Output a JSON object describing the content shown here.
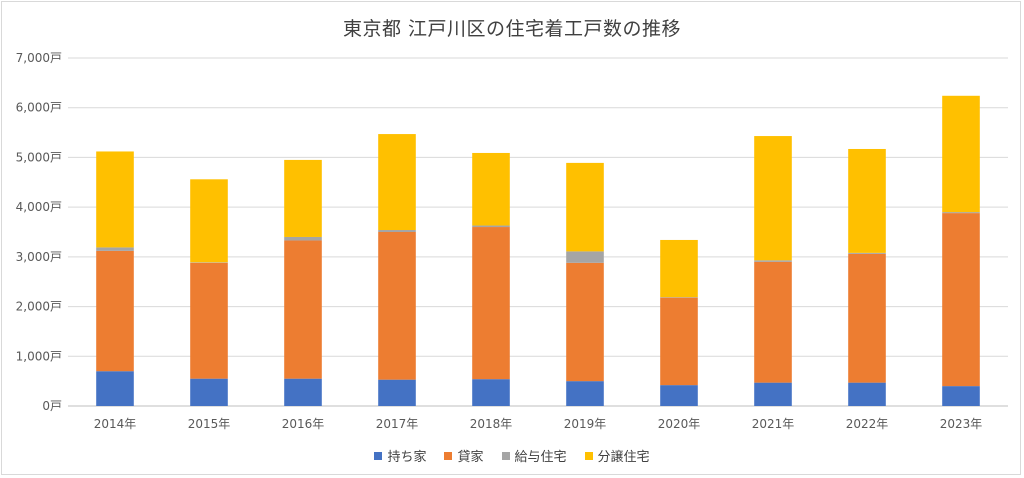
{
  "chart_data": {
    "type": "bar",
    "stacked": true,
    "title": "東京都 江戸川区の住宅着工戸数の推移",
    "categories": [
      "2014年",
      "2015年",
      "2016年",
      "2017年",
      "2018年",
      "2019年",
      "2020年",
      "2021年",
      "2022年",
      "2023年"
    ],
    "series": [
      {
        "name": "持ち家",
        "color": "#4472C4",
        "values": [
          700,
          550,
          550,
          530,
          540,
          500,
          420,
          470,
          470,
          400
        ]
      },
      {
        "name": "貸家",
        "color": "#ED7D31",
        "values": [
          2420,
          2330,
          2780,
          2970,
          3060,
          2380,
          1760,
          2430,
          2590,
          3480
        ]
      },
      {
        "name": "給与住宅",
        "color": "#A5A5A5",
        "values": [
          70,
          10,
          70,
          40,
          30,
          230,
          10,
          30,
          20,
          20
        ]
      },
      {
        "name": "分譲住宅",
        "color": "#FFC000",
        "values": [
          1930,
          1670,
          1550,
          1930,
          1460,
          1780,
          1150,
          2500,
          2090,
          2340
        ]
      }
    ],
    "ylim": [
      0,
      7000
    ],
    "yticks": [
      "0戸",
      "1,000戸",
      "2,000戸",
      "3,000戸",
      "4,000戸",
      "5,000戸",
      "6,000戸",
      "7,000戸"
    ],
    "grid": true,
    "legend_position": "bottom"
  }
}
